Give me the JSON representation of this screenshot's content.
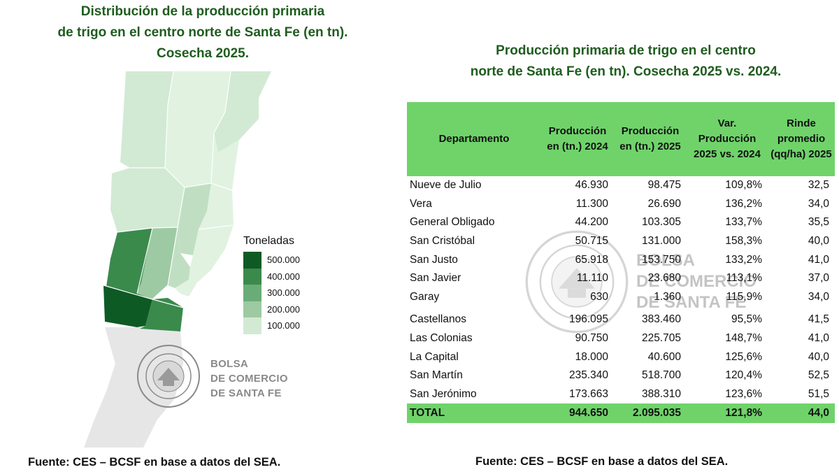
{
  "map": {
    "title_lines": [
      "Distribución de la producción primaria",
      "de trigo en el centro norte de Santa Fe (en tn).",
      "Cosecha 2025."
    ],
    "legend": {
      "title": "Toneladas",
      "stops": [
        {
          "label": "500.000",
          "color": "#0e5a25"
        },
        {
          "label": "400.000",
          "color": "#3a8a4c"
        },
        {
          "label": "300.000",
          "color": "#6aac78"
        },
        {
          "label": "200.000",
          "color": "#9dcaa2"
        },
        {
          "label": "100.000",
          "color": "#d2ead4"
        }
      ]
    },
    "region_colors": {
      "very_light": "#e1f2e1",
      "light": "#d2ead4",
      "light_mid": "#c0dfc2",
      "mid": "#9dcaa2",
      "mid_dark": "#6aac78",
      "dark": "#3a8a4c",
      "darkest": "#0e5a25",
      "outside": "#e6e6e6"
    },
    "watermark": [
      "BOLSA",
      "DE COMERCIO",
      "DE SANTA FE"
    ]
  },
  "table": {
    "title_lines": [
      "Producción primaria de trigo en el centro",
      "norte de Santa Fe (en tn). Cosecha 2025 vs. 2024."
    ],
    "header_color": "#6fd36a",
    "columns": [
      "Departamento",
      "Producción en (tn.) 2024",
      "Producción en (tn.) 2025",
      "Var. Producción 2025 vs. 2024",
      "Rinde promedio (qq/ha) 2025"
    ],
    "rows": [
      {
        "departamento": "Nueve de Julio",
        "prod_2024": "46.930",
        "prod_2025": "98.475",
        "var": "109,8%",
        "rinde": "32,5"
      },
      {
        "departamento": "Vera",
        "prod_2024": "11.300",
        "prod_2025": "26.690",
        "var": "136,2%",
        "rinde": "34,0"
      },
      {
        "departamento": "General Obligado",
        "prod_2024": "44.200",
        "prod_2025": "103.305",
        "var": "133,7%",
        "rinde": "35,5"
      },
      {
        "departamento": "San Cristóbal",
        "prod_2024": "50.715",
        "prod_2025": "131.000",
        "var": "158,3%",
        "rinde": "40,0"
      },
      {
        "departamento": "San Justo",
        "prod_2024": "65.918",
        "prod_2025": "153.750",
        "var": "133,2%",
        "rinde": "41,0"
      },
      {
        "departamento": "San Javier",
        "prod_2024": "11.110",
        "prod_2025": "23.680",
        "var": "113,1%",
        "rinde": "37,0"
      },
      {
        "departamento": "Garay",
        "prod_2024": "630",
        "prod_2025": "1.360",
        "var": "115,9%",
        "rinde": "34,0"
      },
      {
        "departamento": "Castellanos",
        "prod_2024": "196.095",
        "prod_2025": "383.460",
        "var": "95,5%",
        "rinde": "41,5"
      },
      {
        "departamento": "Las Colonias",
        "prod_2024": "90.750",
        "prod_2025": "225.705",
        "var": "148,7%",
        "rinde": "41,0"
      },
      {
        "departamento": "La Capital",
        "prod_2024": "18.000",
        "prod_2025": "40.600",
        "var": "125,6%",
        "rinde": "40,0"
      },
      {
        "departamento": "San Martín",
        "prod_2024": "235.340",
        "prod_2025": "518.700",
        "var": "120,4%",
        "rinde": "52,5"
      },
      {
        "departamento": "San Jerónimo",
        "prod_2024": "173.663",
        "prod_2025": "388.310",
        "var": "123,6%",
        "rinde": "51,5"
      }
    ],
    "total": {
      "departamento": "TOTAL",
      "prod_2024": "944.650",
      "prod_2025": "2.095.035",
      "var": "121,8%",
      "rinde": "44,0"
    },
    "watermark": [
      "BOLSA",
      "DE COMERCIO",
      "DE SANTA FE"
    ]
  },
  "sources": {
    "left": "Fuente: CES – BCSF en base a datos del SEA.",
    "right": "Fuente: CES – BCSF en base a datos del SEA."
  }
}
